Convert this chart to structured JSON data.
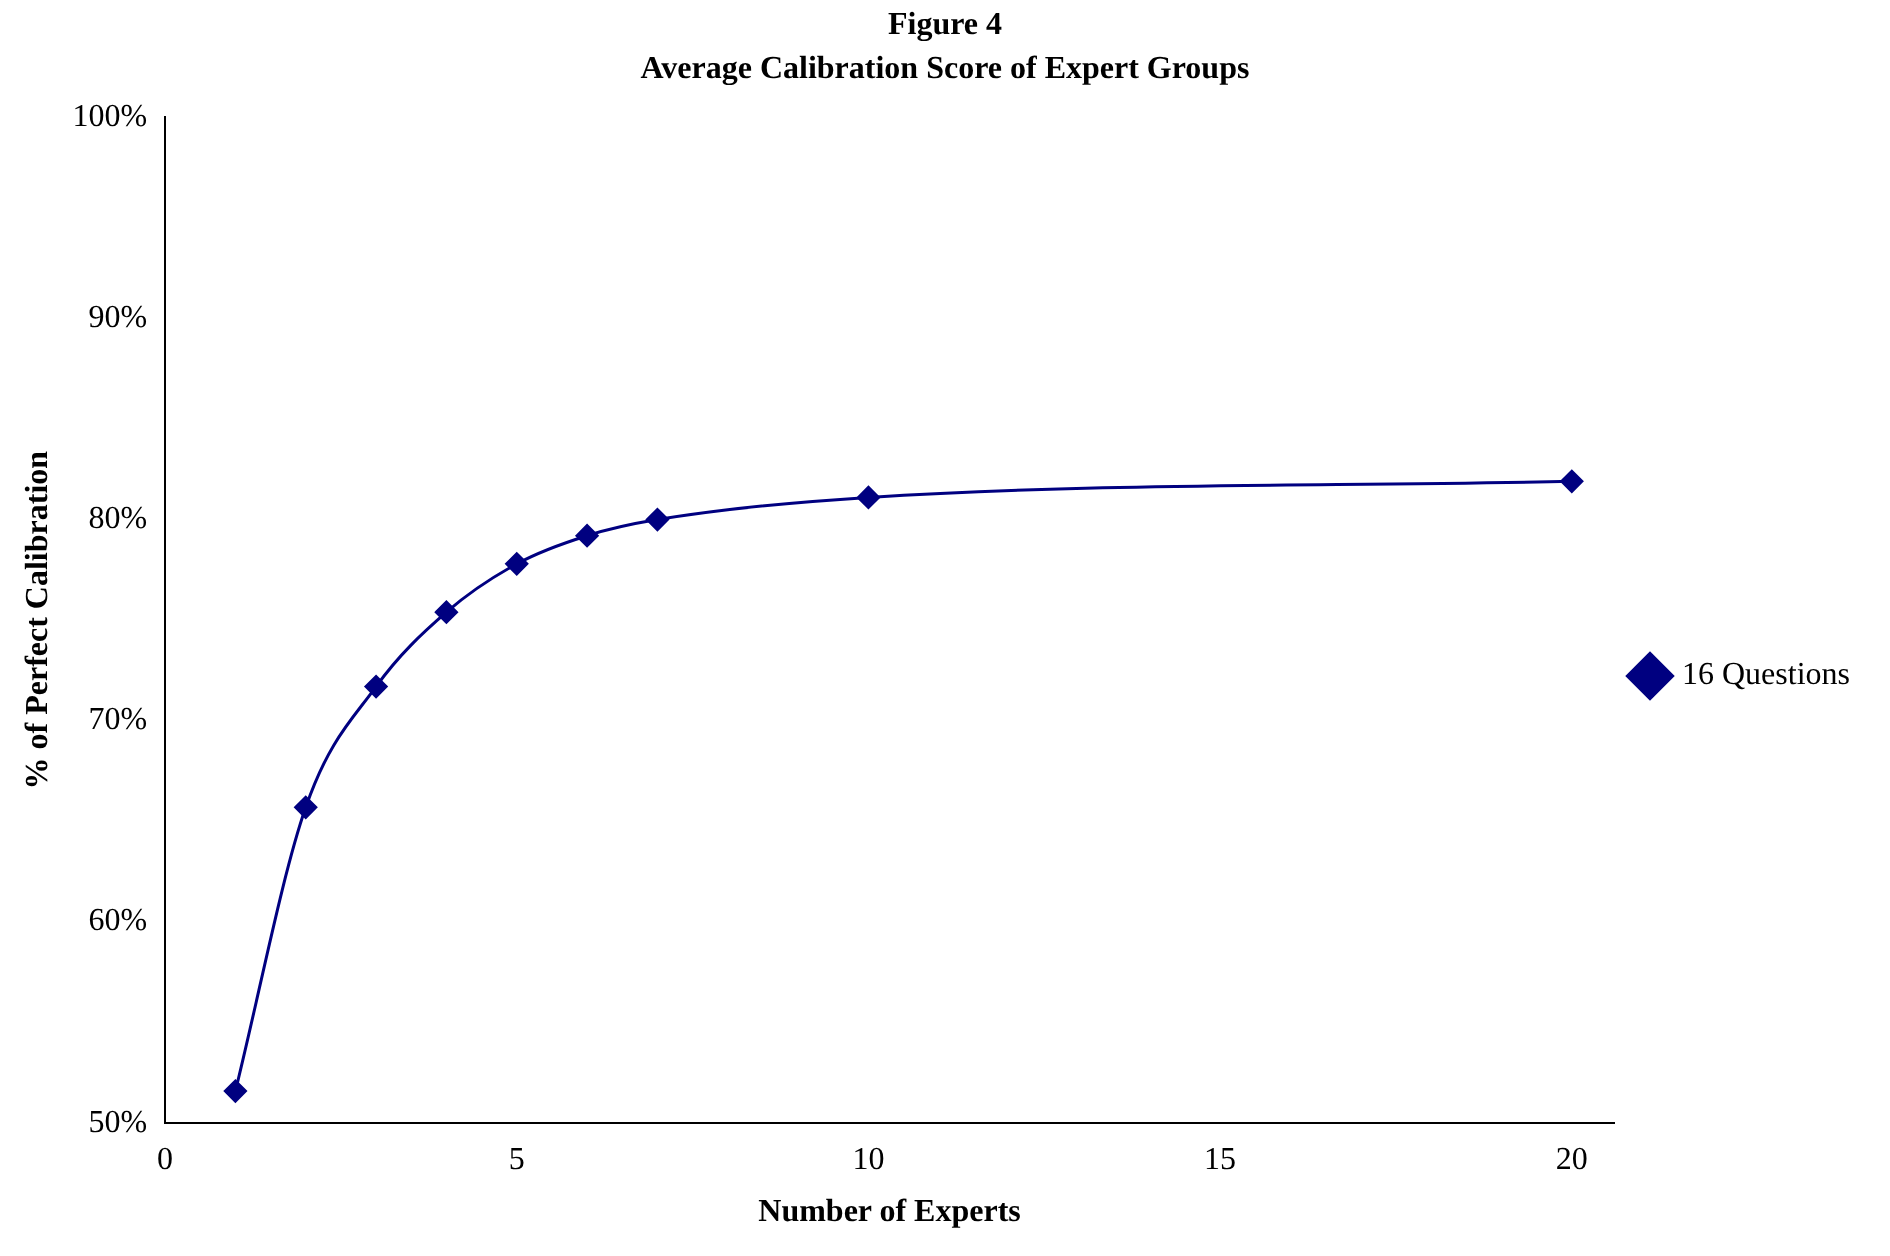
{
  "chart_data": {
    "type": "line",
    "title": "Figure 4",
    "subtitle": "Average Calibration Score of Expert Groups",
    "xlabel": "Number of Experts",
    "ylabel": "% of Perfect Calibration",
    "xlim": [
      0,
      20.6
    ],
    "xticks": [
      0,
      5,
      10,
      15,
      20
    ],
    "ylim": [
      50,
      100
    ],
    "yticks": [
      {
        "value": 50,
        "label": "50%"
      },
      {
        "value": 60,
        "label": "60%"
      },
      {
        "value": 70,
        "label": "70%"
      },
      {
        "value": 80,
        "label": "80%"
      },
      {
        "value": 90,
        "label": "90%"
      },
      {
        "value": 100,
        "label": "100%"
      }
    ],
    "grid": false,
    "legend": "right",
    "marker": "diamond",
    "line_style": "solid",
    "series": [
      {
        "name": "16 Questions",
        "color": "#000080",
        "x": [
          1,
          2,
          3,
          4,
          5,
          6,
          7,
          10,
          20
        ],
        "values": [
          51.6,
          65.7,
          71.7,
          75.4,
          77.8,
          79.2,
          80.0,
          81.1,
          81.9
        ]
      }
    ]
  }
}
